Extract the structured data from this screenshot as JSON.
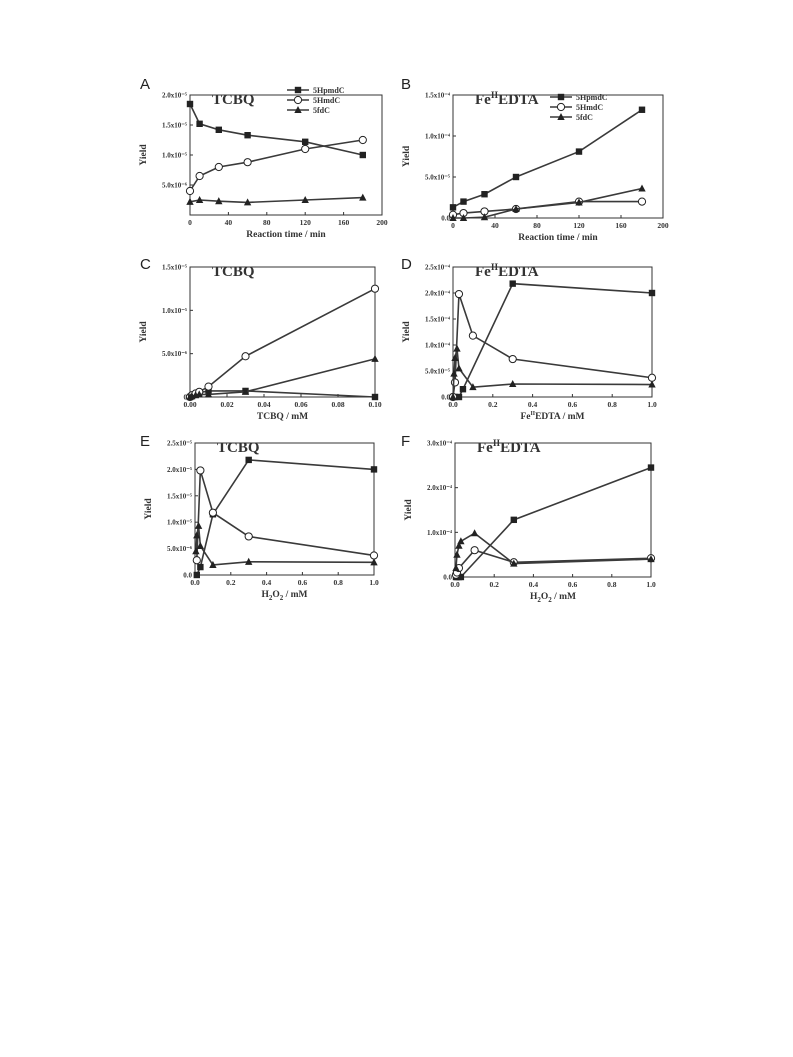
{
  "chart_data": [
    {
      "panel": "A",
      "title": "TCBQ",
      "type": "line",
      "xlabel": "Reaction time / min",
      "ylabel": "Yield",
      "xlim": [
        0,
        200
      ],
      "ylim": [
        0,
        2e-05
      ],
      "xticks": [
        0,
        40,
        80,
        120,
        160,
        200
      ],
      "xtick_labels": [
        "0",
        "40",
        "80",
        "120",
        "160",
        "200"
      ],
      "yticks": [
        5e-06,
        1e-05,
        1.5e-05,
        2e-05
      ],
      "ytick_labels": [
        "5.0x10⁻⁶",
        "1.0x10⁻⁵",
        "1.5x10⁻⁵",
        "2.0x10⁻⁵"
      ],
      "legend": "top-right",
      "series": [
        {
          "name": "5HpmdC",
          "marker": "square",
          "x": [
            0,
            10,
            30,
            60,
            120,
            180
          ],
          "y": [
            1.85e-05,
            1.52e-05,
            1.42e-05,
            1.33e-05,
            1.22e-05,
            1e-05
          ]
        },
        {
          "name": "5HmdC",
          "marker": "circle",
          "x": [
            0,
            10,
            30,
            60,
            120,
            180
          ],
          "y": [
            4e-06,
            6.5e-06,
            8e-06,
            8.8e-06,
            1.1e-05,
            1.25e-05
          ]
        },
        {
          "name": "5fdC",
          "marker": "triangle",
          "x": [
            0,
            10,
            30,
            60,
            120,
            180
          ],
          "y": [
            2.2e-06,
            2.5e-06,
            2.3e-06,
            2.1e-06,
            2.5e-06,
            2.9e-06
          ]
        }
      ]
    },
    {
      "panel": "B",
      "title": "Fe",
      "title_sup": "II",
      "title_rest": "EDTA",
      "type": "line",
      "xlabel": "Reaction time / min",
      "ylabel": "Yield",
      "xlim": [
        0,
        200
      ],
      "ylim": [
        0,
        0.00015
      ],
      "xticks": [
        0,
        40,
        80,
        120,
        160,
        200
      ],
      "xtick_labels": [
        "0",
        "40",
        "80",
        "120",
        "160",
        "200"
      ],
      "yticks": [
        0,
        5e-05,
        0.0001,
        0.00015
      ],
      "ytick_labels": [
        "0.0",
        "5.0x10⁻⁵",
        "1.0x10⁻⁴",
        "1.5x10⁻⁴"
      ],
      "legend": "top-right",
      "series": [
        {
          "name": "5HpmdC",
          "marker": "square",
          "x": [
            0,
            10,
            30,
            60,
            120,
            180
          ],
          "y": [
            1.3e-05,
            2e-05,
            2.9e-05,
            5e-05,
            8.1e-05,
            0.000132
          ]
        },
        {
          "name": "5HmdC",
          "marker": "circle",
          "x": [
            0,
            10,
            30,
            60,
            120,
            180
          ],
          "y": [
            4e-06,
            6e-06,
            8e-06,
            1.1e-05,
            2e-05,
            2e-05
          ]
        },
        {
          "name": "5fdC",
          "marker": "triangle",
          "x": [
            0,
            10,
            30,
            60,
            120,
            180
          ],
          "y": [
            0,
            0,
            1e-06,
            1.1e-05,
            1.9e-05,
            3.6e-05
          ]
        }
      ]
    },
    {
      "panel": "C",
      "title": "TCBQ",
      "type": "line",
      "xlabel": "TCBQ / mM",
      "ylabel": "Yield",
      "xlim": [
        0,
        0.1
      ],
      "ylim": [
        0,
        1.5e-05
      ],
      "xticks": [
        0,
        0.02,
        0.04,
        0.06,
        0.08,
        0.1
      ],
      "xtick_labels": [
        "0.00",
        "0.02",
        "0.04",
        "0.06",
        "0.08",
        "0.10"
      ],
      "yticks": [
        0,
        5e-06,
        1e-05,
        1.5e-05
      ],
      "ytick_labels": [
        "0",
        "5.0x10⁻⁶",
        "1.0x10⁻⁵",
        "1.5x10⁻⁵"
      ],
      "series": [
        {
          "name": "5HpmdC",
          "marker": "square",
          "x": [
            0,
            0.001,
            0.003,
            0.005,
            0.01,
            0.03,
            0.1
          ],
          "y": [
            0,
            1e-07,
            3e-07,
            5e-07,
            7e-07,
            7e-07,
            0
          ]
        },
        {
          "name": "5HmdC",
          "marker": "circle",
          "x": [
            0,
            0.001,
            0.003,
            0.005,
            0.01,
            0.03,
            0.1
          ],
          "y": [
            0,
            2e-07,
            4e-07,
            6e-07,
            1.2e-06,
            4.7e-06,
            1.25e-05
          ]
        },
        {
          "name": "5fdC",
          "marker": "triangle",
          "x": [
            0,
            0.001,
            0.003,
            0.005,
            0.01,
            0.03,
            0.1
          ],
          "y": [
            0,
            1e-07,
            2e-07,
            3e-07,
            3e-07,
            6e-07,
            4.4e-06
          ]
        }
      ]
    },
    {
      "panel": "D",
      "title": "Fe",
      "title_sup": "II",
      "title_rest": "EDTA",
      "type": "line",
      "xlabel": "Fe",
      "xlabel_sup": "II",
      "xlabel_rest": "EDTA / mM",
      "ylabel": "Yield",
      "xlim": [
        0,
        1.0
      ],
      "ylim": [
        0,
        0.00025
      ],
      "xticks": [
        0,
        0.2,
        0.4,
        0.6,
        0.8,
        1.0
      ],
      "xtick_labels": [
        "0.0",
        "0.2",
        "0.4",
        "0.6",
        "0.8",
        "1.0"
      ],
      "yticks": [
        0,
        5e-05,
        0.0001,
        0.00015,
        0.0002,
        0.00025
      ],
      "ytick_labels": [
        "0.0",
        "5.0x10⁻⁵",
        "1.0x10⁻⁴",
        "1.5x10⁻⁴",
        "2.0x10⁻⁴",
        "2.5x10⁻⁴"
      ],
      "series": [
        {
          "name": "5HpmdC",
          "marker": "square",
          "x": [
            0,
            0.01,
            0.03,
            0.05,
            0.3,
            1.0
          ],
          "y": [
            0,
            0,
            0,
            1.5e-05,
            0.000218,
            0.0002
          ]
        },
        {
          "name": "5HmdC",
          "marker": "circle",
          "x": [
            0,
            0.01,
            0.03,
            0.1,
            0.3,
            1.0
          ],
          "y": [
            0,
            2.8e-05,
            0.000198,
            0.000118,
            7.3e-05,
            3.7e-05
          ]
        },
        {
          "name": "5fdC",
          "marker": "triangle",
          "x": [
            0,
            0.005,
            0.01,
            0.02,
            0.03,
            0.1,
            0.3,
            1.0
          ],
          "y": [
            0,
            4.5e-05,
            7.5e-05,
            9.3e-05,
            5.5e-05,
            1.9e-05,
            2.5e-05,
            2.4e-05
          ]
        }
      ]
    },
    {
      "panel": "E",
      "title": "TCBQ",
      "type": "line",
      "xlabel": "H",
      "xlabel_sub": "2",
      "xlabel_mid": "O",
      "xlabel_sub2": "2",
      "xlabel_rest": " / mM",
      "ylabel": "Yield",
      "xlim": [
        0,
        1.0
      ],
      "ylim": [
        0,
        2.5e-05
      ],
      "xticks": [
        0,
        0.2,
        0.4,
        0.6,
        0.8,
        1.0
      ],
      "xtick_labels": [
        "0.0",
        "0.2",
        "0.4",
        "0.6",
        "0.8",
        "1.0"
      ],
      "yticks": [
        0,
        5e-06,
        1e-05,
        1.5e-05,
        2e-05,
        2.5e-05
      ],
      "ytick_labels": [
        "0.0",
        "5.0x10⁻⁶",
        "1.0x10⁻⁵",
        "1.5x10⁻⁵",
        "2.0x10⁻⁵",
        "2.5x10⁻⁵"
      ],
      "series": [
        {
          "name": "5HpmdC",
          "marker": "square",
          "x": [
            0.01,
            0.03,
            0.1,
            0.3,
            1.0
          ],
          "y": [
            0,
            1.5e-06,
            1.15e-05,
            2.18e-05,
            2e-05
          ]
        },
        {
          "name": "5HmdC",
          "marker": "circle",
          "x": [
            0.01,
            0.03,
            0.1,
            0.3,
            1.0
          ],
          "y": [
            2.8e-06,
            1.98e-05,
            1.18e-05,
            7.3e-06,
            3.7e-06
          ]
        },
        {
          "name": "5fdC",
          "marker": "triangle",
          "x": [
            0.005,
            0.01,
            0.02,
            0.03,
            0.1,
            0.3,
            1.0
          ],
          "y": [
            4.5e-06,
            7.5e-06,
            9.3e-06,
            5.5e-06,
            1.9e-06,
            2.5e-06,
            2.4e-06
          ]
        }
      ]
    },
    {
      "panel": "F",
      "title": "Fe",
      "title_sup": "II",
      "title_rest": "EDTA",
      "type": "line",
      "xlabel": "H",
      "xlabel_sub": "2",
      "xlabel_mid": "O",
      "xlabel_sub2": "2",
      "xlabel_rest": " / mM",
      "ylabel": "Yield",
      "xlim": [
        0,
        1.0
      ],
      "ylim": [
        0,
        0.0003
      ],
      "xticks": [
        0,
        0.2,
        0.4,
        0.6,
        0.8,
        1.0
      ],
      "xtick_labels": [
        "0.0",
        "0.2",
        "0.4",
        "0.6",
        "0.8",
        "1.0"
      ],
      "yticks": [
        0,
        0.0001,
        0.0002,
        0.0003
      ],
      "ytick_labels": [
        "0.0",
        "1.0x10⁻⁴",
        "2.0x10⁻⁴",
        "3.0x10⁻⁴"
      ],
      "series": [
        {
          "name": "5HpmdC",
          "marker": "square",
          "x": [
            0.005,
            0.01,
            0.02,
            0.03,
            0.3,
            1.0
          ],
          "y": [
            0,
            0,
            0,
            0,
            0.000128,
            0.000245
          ]
        },
        {
          "name": "5HmdC",
          "marker": "circle",
          "x": [
            0.005,
            0.01,
            0.02,
            0.1,
            0.3,
            1.0
          ],
          "y": [
            5e-06,
            1e-05,
            2e-05,
            6e-05,
            3.3e-05,
            4.2e-05
          ]
        },
        {
          "name": "5fdC",
          "marker": "triangle",
          "x": [
            0.005,
            0.01,
            0.02,
            0.03,
            0.1,
            0.3,
            1.0
          ],
          "y": [
            2e-05,
            5e-05,
            7e-05,
            8e-05,
            9.8e-05,
            3e-05,
            4e-05
          ]
        }
      ]
    }
  ],
  "panel_letters": [
    "A",
    "B",
    "C",
    "D",
    "E",
    "F"
  ],
  "legend_labels": [
    "5HpmdC",
    "5HmdC",
    "5fdC"
  ],
  "colors": {
    "line": "#3a3a3a",
    "marker": "#222222",
    "axis": "#333333"
  }
}
